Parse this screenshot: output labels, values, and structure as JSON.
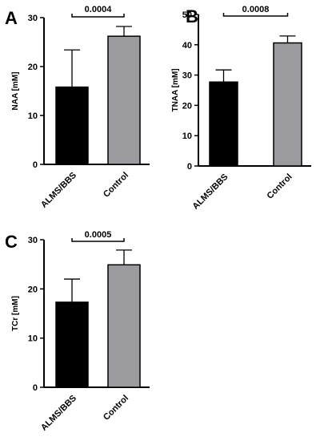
{
  "chart_data": [
    {
      "type": "bar",
      "panel": "A",
      "ylabel": "NAA [mM]",
      "ylim": [
        0,
        30
      ],
      "yticks": [
        0,
        10,
        20,
        30
      ],
      "categories": [
        "ALMS/BBS",
        "Control"
      ],
      "values": [
        15.8,
        26.2
      ],
      "errors": [
        7.6,
        2.0
      ],
      "colors": [
        "#000000",
        "#9b9b9f"
      ],
      "annotation": "0.0004"
    },
    {
      "type": "bar",
      "panel": "B",
      "ylabel": "TNAA [mM]",
      "ylim": [
        0,
        50
      ],
      "yticks": [
        0,
        10,
        20,
        30,
        40,
        50
      ],
      "categories": [
        "ALMS/BBS",
        "Control"
      ],
      "values": [
        27.7,
        40.6
      ],
      "errors": [
        4.0,
        2.3
      ],
      "colors": [
        "#000000",
        "#9b9b9f"
      ],
      "annotation": "0.0008"
    },
    {
      "type": "bar",
      "panel": "C",
      "ylabel": "TCr [mM]",
      "ylim": [
        0,
        30
      ],
      "yticks": [
        0,
        10,
        20,
        30
      ],
      "categories": [
        "ALMS/BBS",
        "Control"
      ],
      "values": [
        17.3,
        24.9
      ],
      "errors": [
        4.7,
        3.0
      ],
      "colors": [
        "#000000",
        "#9b9b9f"
      ],
      "annotation": "0.0005"
    }
  ]
}
